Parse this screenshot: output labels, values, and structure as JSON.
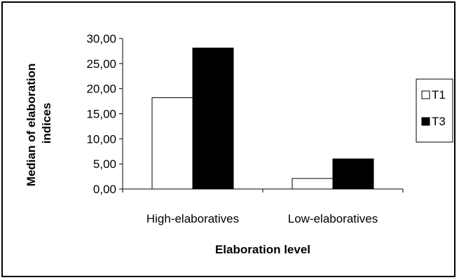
{
  "chart_data": {
    "type": "bar",
    "title": "",
    "xlabel": "Elaboration level",
    "ylabel": "Median of elaboration indices",
    "ylabel_lines": [
      "Median of elaboration",
      "indices"
    ],
    "categories": [
      "High-elaboratives",
      "Low-elaboratives"
    ],
    "series": [
      {
        "name": "T1",
        "values": [
          18.2,
          2.1
        ],
        "color": "#ffffff"
      },
      {
        "name": "T3",
        "values": [
          28.1,
          6.0
        ],
        "color": "#000000"
      }
    ],
    "ylim": [
      0,
      30
    ],
    "yticks": [
      0,
      5,
      10,
      15,
      20,
      25,
      30
    ],
    "ytick_labels": [
      "0,00",
      "5,00",
      "10,00",
      "15,00",
      "20,00",
      "25,00",
      "30,00"
    ],
    "grid": false,
    "legend_position": "right"
  }
}
